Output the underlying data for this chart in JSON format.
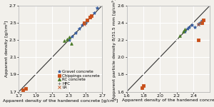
{
  "left_plot": {
    "xlabel": "Apparent density of the hardened concrete [g/cm³]",
    "ylabel": "Apparent density [g/cm³]",
    "xlim": [
      1.7,
      2.7
    ],
    "ylim": [
      1.7,
      2.7
    ],
    "xticks": [
      1.7,
      1.9,
      2.1,
      2.3,
      2.5,
      2.7
    ],
    "yticks": [
      1.7,
      1.9,
      2.1,
      2.3,
      2.5,
      2.7
    ],
    "series": {
      "Gravel concrete": {
        "color": "#3a5fa0",
        "marker": "*",
        "x": [
          2.3,
          2.34,
          2.38,
          2.42,
          2.46,
          2.48,
          2.5,
          2.52,
          2.55,
          2.6,
          2.64
        ],
        "y": [
          2.3,
          2.34,
          2.38,
          2.43,
          2.47,
          2.49,
          2.5,
          2.52,
          2.56,
          2.61,
          2.67
        ]
      },
      "Chippings concrete": {
        "color": "#c8501a",
        "marker": "s",
        "x": [
          1.75,
          1.78,
          2.48,
          2.52,
          2.55,
          2.57
        ],
        "y": [
          1.72,
          1.74,
          2.5,
          2.53,
          2.56,
          2.58
        ]
      },
      "RC concrete": {
        "color": "#4a7a28",
        "marker": "^",
        "x": [
          2.24,
          2.28,
          2.3,
          2.33
        ],
        "y": [
          2.29,
          2.31,
          2.33,
          2.26
        ]
      },
      "HPC": {
        "color": "#777777",
        "marker": "+",
        "x": [
          2.5
        ],
        "y": [
          2.5
        ]
      },
      "LR": {
        "color": "#c8501a",
        "marker": "x",
        "x": [
          2.48
        ],
        "y": [
          2.48
        ]
      }
    }
  },
  "right_plot": {
    "xlabel": "Apparent density of the hardened concre",
    "ylabel": "Apparent particle density 8/31.5 mm [g/cm³]",
    "xlim": [
      1.6,
      2.6
    ],
    "ylim": [
      1.6,
      2.6
    ],
    "xticks": [
      1.6,
      1.8,
      2.0,
      2.2,
      2.4
    ],
    "yticks": [
      1.6,
      1.8,
      2.0,
      2.2,
      2.4,
      2.6
    ],
    "series": {
      "Gravel concrete": {
        "color": "#3a5fa0",
        "marker": "*",
        "x": [
          2.3,
          2.33,
          2.35,
          2.38,
          2.42,
          2.46,
          2.48,
          2.5
        ],
        "y": [
          2.3,
          2.33,
          2.35,
          2.37,
          2.35,
          2.38,
          2.4,
          2.42
        ]
      },
      "Chippings concrete": {
        "color": "#c8501a",
        "marker": "s",
        "x": [
          1.78,
          1.8,
          2.46,
          2.5,
          2.52
        ],
        "y": [
          1.65,
          1.67,
          2.2,
          2.4,
          2.43
        ]
      },
      "RC concrete": {
        "color": "#4a7a28",
        "marker": "^",
        "x": [
          2.24,
          2.28,
          2.3
        ],
        "y": [
          2.25,
          2.3,
          2.32
        ]
      },
      "HPC": {
        "color": "#777777",
        "marker": "+",
        "x": [
          2.48
        ],
        "y": [
          2.4
        ]
      },
      "LR": {
        "color": "#c8501a",
        "marker": "x",
        "x": [
          2.46
        ],
        "y": [
          2.38
        ]
      }
    }
  },
  "legend_labels": [
    "Gravel concrete",
    "Chippings concrete",
    "RC concrete",
    "HPC",
    "LR"
  ],
  "legend_colors": [
    "#3a5fa0",
    "#c8501a",
    "#4a7a28",
    "#777777",
    "#c8501a"
  ],
  "legend_markers": [
    "*",
    "s",
    "^",
    "+",
    "x"
  ],
  "background_color": "#f2f0eb",
  "grid_color": "#ffffff",
  "diag_line_color": "#333333",
  "tick_fontsize": 4.5,
  "label_fontsize": 4.5,
  "legend_fontsize": 4.0
}
